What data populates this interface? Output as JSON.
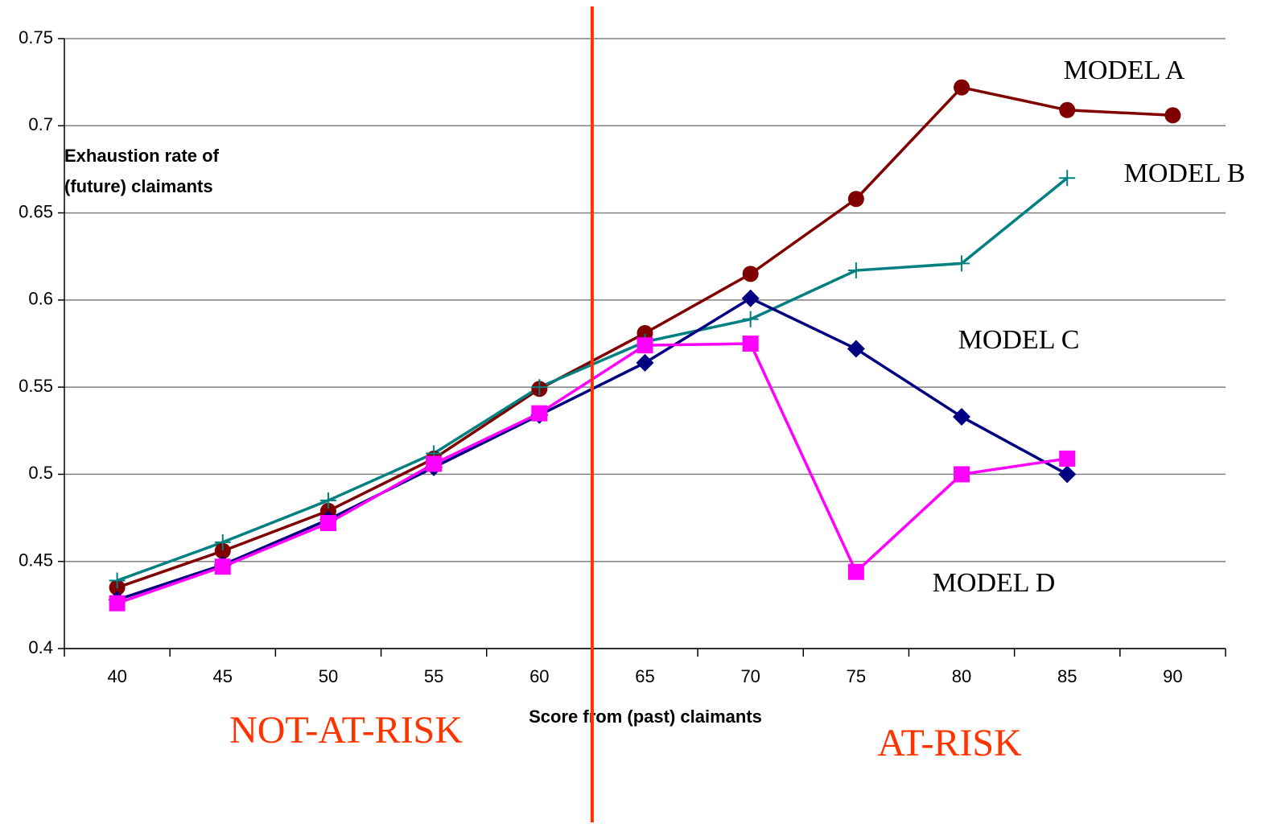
{
  "chart_data": {
    "type": "line",
    "y_label": [
      "Exhaustion rate of",
      "(future) claimants"
    ],
    "x_label": "Score from (past) claimants",
    "x": [
      40,
      45,
      50,
      55,
      60,
      65,
      70,
      75,
      80,
      85,
      90
    ],
    "xlim": [
      37.5,
      92.5
    ],
    "xticks": [
      40,
      45,
      50,
      55,
      60,
      65,
      70,
      75,
      80,
      85,
      90
    ],
    "ylim": [
      0.4,
      0.75
    ],
    "yticks": [
      0.4,
      0.45,
      0.5,
      0.55,
      0.6,
      0.65,
      0.7,
      0.75
    ],
    "grid": true,
    "series": [
      {
        "name": "MODEL A",
        "color": "#800000",
        "marker": "circle",
        "values": [
          0.435,
          0.456,
          0.479,
          0.509,
          0.549,
          0.581,
          0.615,
          0.658,
          0.722,
          0.709,
          0.706
        ]
      },
      {
        "name": "MODEL B",
        "color": "#008080",
        "marker": "plus",
        "values": [
          0.439,
          0.461,
          0.485,
          0.512,
          0.55,
          0.576,
          0.589,
          0.617,
          0.621,
          0.67,
          null
        ]
      },
      {
        "name": "MODEL C",
        "color": "#000080",
        "marker": "diamond",
        "values": [
          0.428,
          0.448,
          0.474,
          0.504,
          0.534,
          0.564,
          0.601,
          0.572,
          0.533,
          0.5,
          null
        ]
      },
      {
        "name": "MODEL D",
        "color": "#ff00ff",
        "marker": "square",
        "values": [
          0.426,
          0.447,
          0.472,
          0.506,
          0.535,
          0.574,
          0.575,
          0.444,
          0.5,
          0.509,
          null
        ]
      }
    ],
    "threshold": {
      "x": 62.5,
      "color": "#ff3300"
    },
    "annotations": [
      "NOT-AT-RISK",
      "AT-RISK"
    ]
  }
}
